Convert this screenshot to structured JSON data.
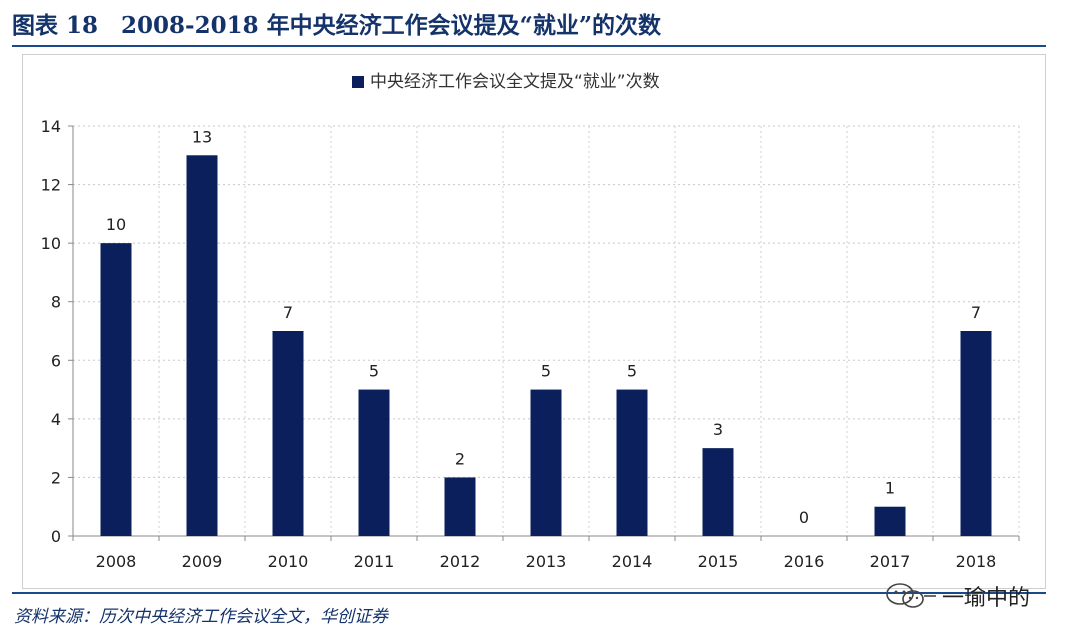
{
  "header": {
    "title": "图表 18　2008-2018 年中央经济工作会议提及“就业”的次数"
  },
  "footer": {
    "source": "资料来源：历次中央经济工作会议全文，华创证券",
    "watermark": "一瑜中的",
    "watermark_icon": "wechat-icon"
  },
  "chart_data": {
    "type": "bar",
    "categories": [
      "2008",
      "2009",
      "2010",
      "2011",
      "2012",
      "2013",
      "2014",
      "2015",
      "2016",
      "2017",
      "2018"
    ],
    "series": [
      {
        "name": "中央经济工作会议全文提及“就业”次数",
        "values": [
          10,
          13,
          7,
          5,
          2,
          5,
          5,
          3,
          0,
          1,
          7
        ],
        "color": "#0b1f5c"
      }
    ],
    "data_labels": [
      "10",
      "13",
      "7",
      "5",
      "2",
      "5",
      "5",
      "3",
      "0",
      "1",
      "7"
    ],
    "y_ticks": [
      "0",
      "2",
      "4",
      "6",
      "8",
      "10",
      "12",
      "14"
    ],
    "ylim": [
      0,
      14
    ],
    "y_step": 2,
    "grid": {
      "horizontal": true,
      "vertical": true,
      "style": "dotted"
    },
    "legend_position": "top-center",
    "xlabel": "",
    "ylabel": ""
  }
}
